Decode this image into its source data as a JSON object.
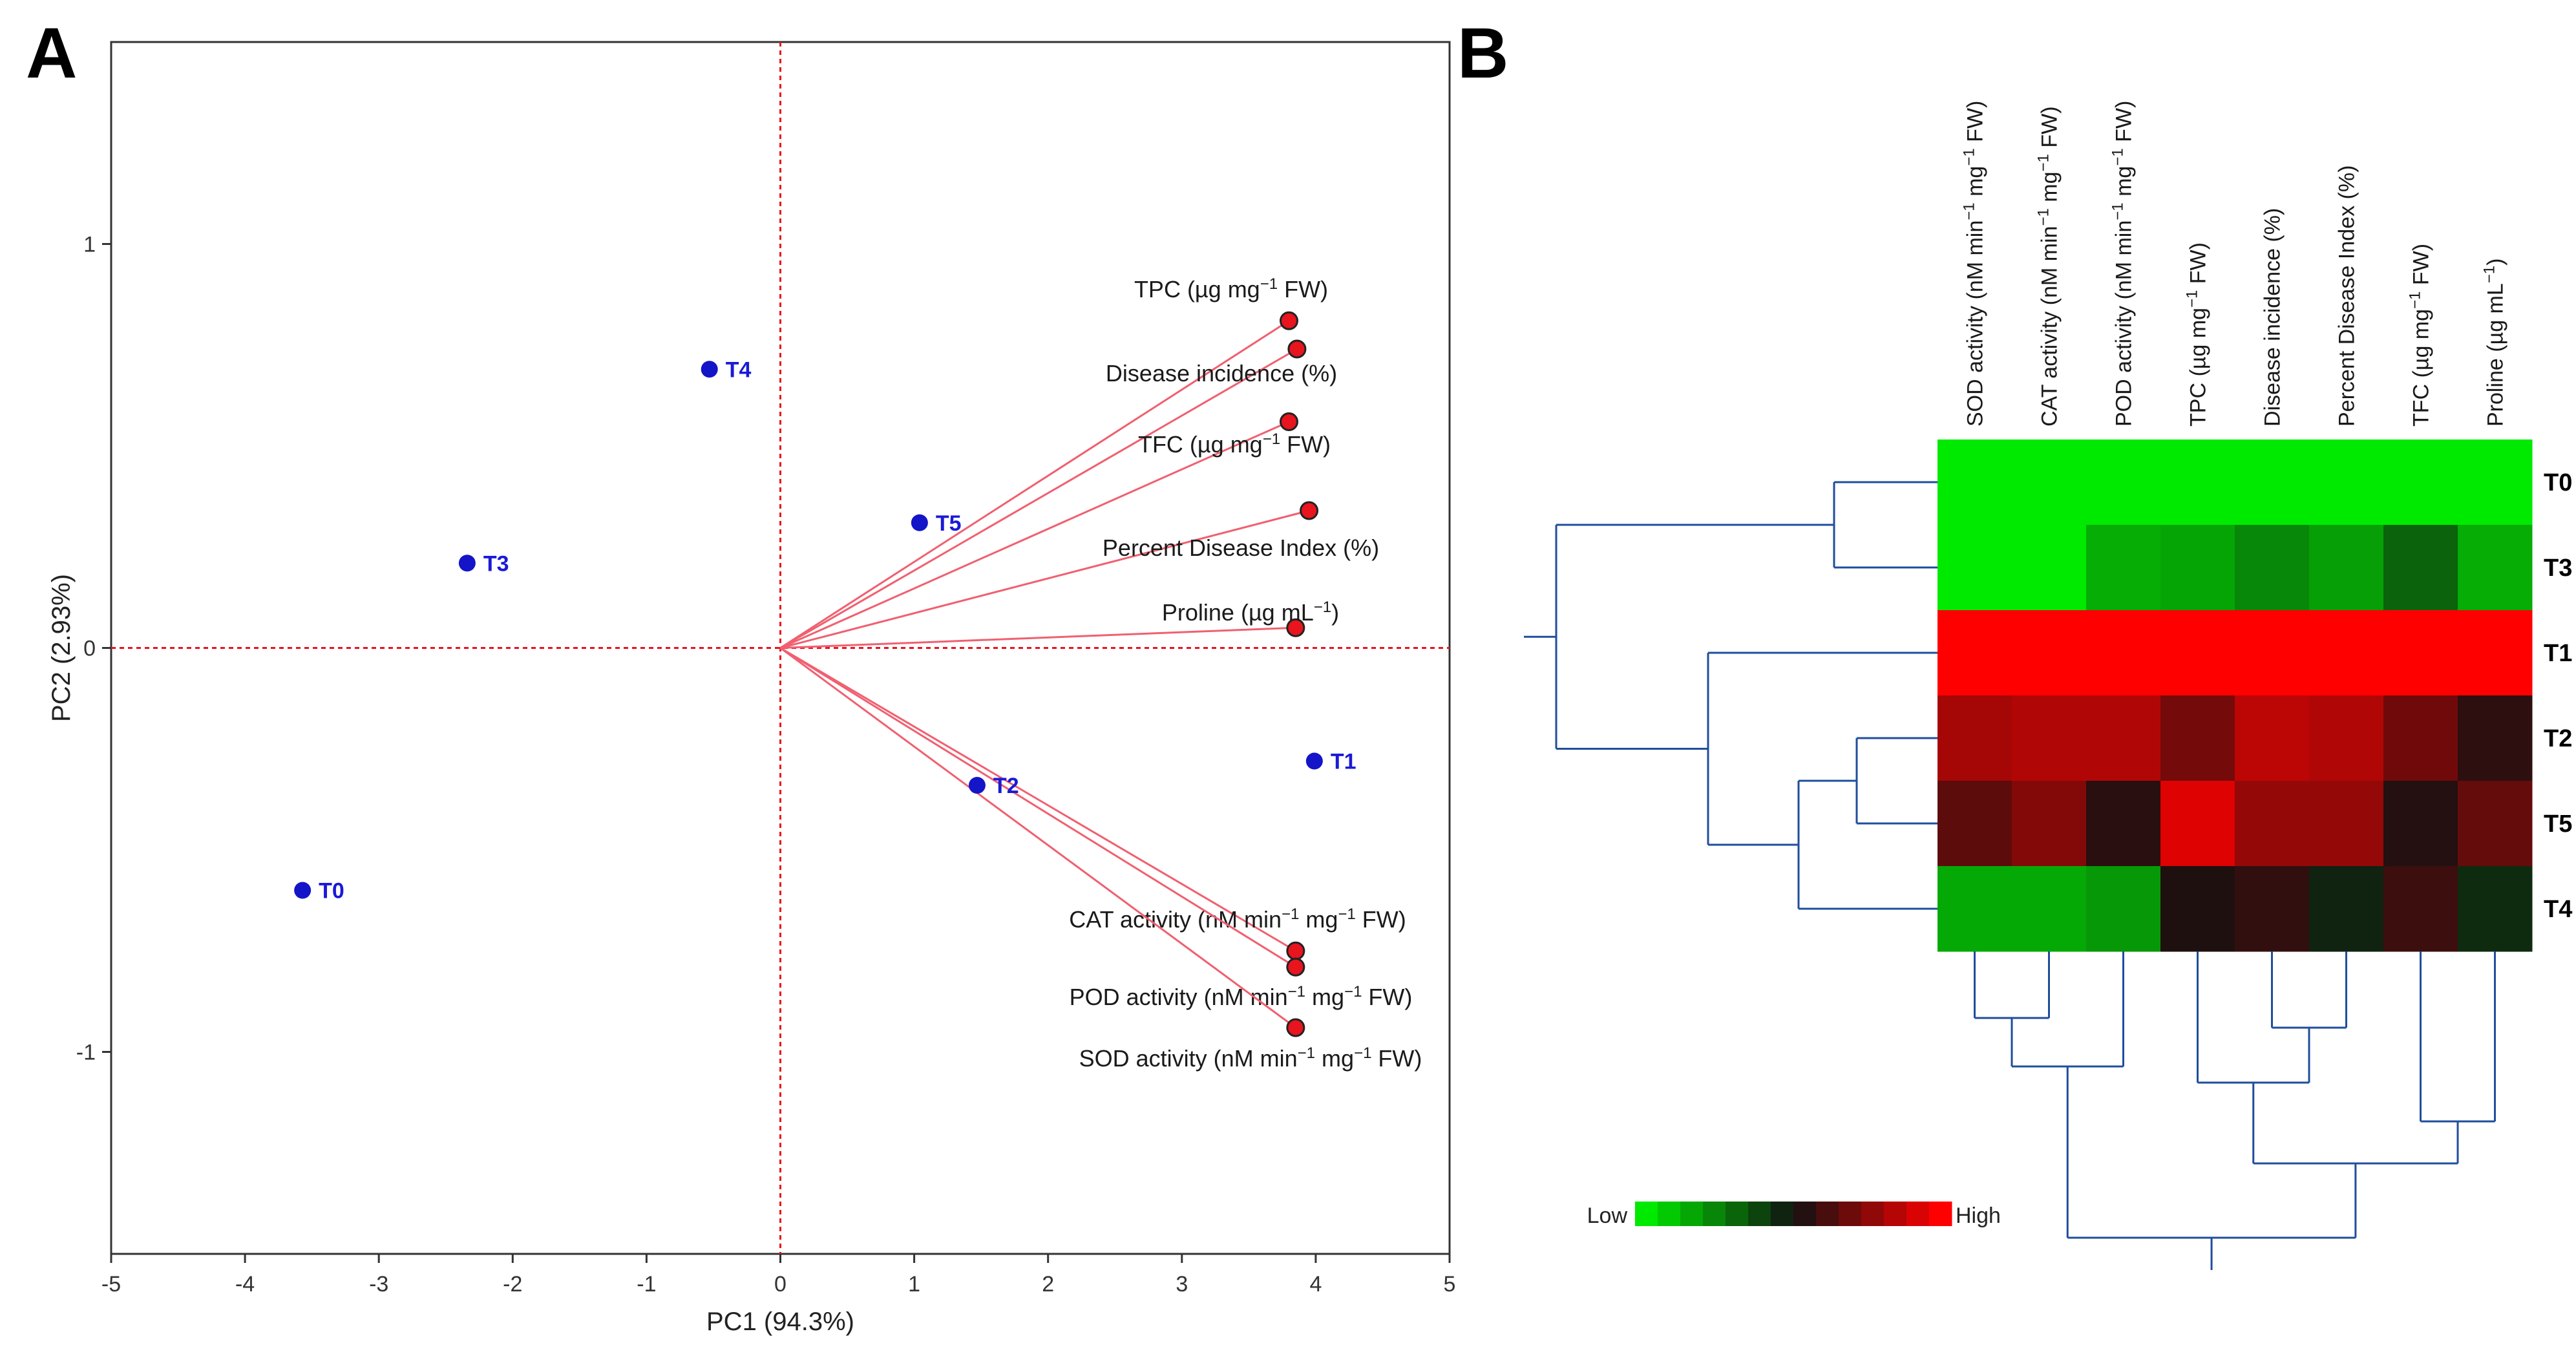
{
  "chart_data": [
    {
      "type": "scatter",
      "subtype": "pca-biplot",
      "panel": "A",
      "xlabel": "PC1 (94.3%)",
      "ylabel": "PC2 (2.93%)",
      "xlim": [
        -5,
        5
      ],
      "ylim": [
        -1.5,
        1.5
      ],
      "xticks": [
        -5,
        -4,
        -3,
        -2,
        -1,
        0,
        1,
        2,
        3,
        4,
        5
      ],
      "yticks": [
        -1,
        0,
        1
      ],
      "reference_lines": [
        "x=0",
        "y=0"
      ],
      "observations": [
        {
          "label": "T0",
          "x": -3.57,
          "y": -0.6
        },
        {
          "label": "T1",
          "x": 3.99,
          "y": -0.28
        },
        {
          "label": "T2",
          "x": 1.47,
          "y": -0.34
        },
        {
          "label": "T3",
          "x": -2.34,
          "y": 0.21
        },
        {
          "label": "T4",
          "x": -0.53,
          "y": 0.69
        },
        {
          "label": "T5",
          "x": 1.04,
          "y": 0.31
        }
      ],
      "variables": [
        {
          "label": "TPC (µg mg",
          "sup": "−1",
          "rest": " FW)",
          "x": 3.8,
          "y": 0.81
        },
        {
          "label": "Disease incidence (%)",
          "sup": "",
          "rest": "",
          "x": 3.86,
          "y": 0.74
        },
        {
          "label": "TFC (µg mg",
          "sup": "−1",
          "rest": " FW)",
          "x": 3.8,
          "y": 0.56
        },
        {
          "label": "Percent Disease Index  (%)",
          "sup": "",
          "rest": "",
          "x": 3.95,
          "y": 0.34
        },
        {
          "label": "Proline (µg mL",
          "sup": "−1",
          "rest": ")",
          "x": 3.85,
          "y": 0.05
        },
        {
          "label": "CAT activity (nM min",
          "sup": "−1",
          "rest": " mg",
          "sup2": "−1",
          "rest2": " FW)",
          "x": 3.85,
          "y": -0.75
        },
        {
          "label": "POD activity (nM min",
          "sup": "−1",
          "rest": " mg",
          "sup2": "−1",
          "rest2": " FW)",
          "x": 3.85,
          "y": -0.79
        },
        {
          "label": "SOD activity (nM min",
          "sup": "−1",
          "rest": " mg",
          "sup2": "−1",
          "rest2": " FW)",
          "x": 3.85,
          "y": -0.94
        }
      ],
      "colors": {
        "arrow": "#f06070",
        "observation": "#1414c8",
        "refline": "#e8141e",
        "variable_point": "#e8141e"
      }
    },
    {
      "type": "heatmap",
      "panel": "B",
      "rows": [
        "T0",
        "T3",
        "T1",
        "T2",
        "T5",
        "T4"
      ],
      "columns": [
        "SOD activity (nM min⁻¹ mg⁻¹ FW)",
        "CAT activity (nM min⁻¹ mg⁻¹ FW)",
        "POD activity (nM min⁻¹ mg⁻¹ FW)",
        "TPC (µg mg⁻¹ FW)",
        "Disease incidence (%)",
        "Percent Disease Index  (%)",
        "TFC (µg mg⁻¹ FW)",
        "Proline (µg mL⁻¹)"
      ],
      "values": [
        [
          -1.0,
          -1.0,
          -1.0,
          -1.0,
          -1.0,
          -1.0,
          -1.0,
          -1.0
        ],
        [
          -1.0,
          -1.0,
          -0.72,
          -0.68,
          -0.55,
          -0.66,
          -0.38,
          -0.72
        ],
        [
          1.0,
          1.0,
          1.0,
          1.0,
          1.0,
          1.0,
          1.0,
          1.0
        ],
        [
          0.62,
          0.67,
          0.67,
          0.42,
          0.72,
          0.67,
          0.4,
          0.12
        ],
        [
          0.32,
          0.48,
          0.1,
          0.86,
          0.55,
          0.55,
          0.08,
          0.35
        ],
        [
          -0.7,
          -0.7,
          -0.62,
          0.06,
          0.14,
          -0.08,
          0.18,
          -0.12
        ]
      ],
      "value_range": [
        -1,
        1
      ],
      "legend": {
        "low_label": "Low",
        "high_label": "High",
        "steps": 14
      },
      "row_dendrogram": true,
      "column_dendrogram": true,
      "colors": {
        "low": "#00ea00",
        "mid": "#111111",
        "high": "#ff0000",
        "dendrogram": "#1f4e9c"
      }
    }
  ],
  "panels": {
    "a_label": "A",
    "b_label": "B"
  }
}
